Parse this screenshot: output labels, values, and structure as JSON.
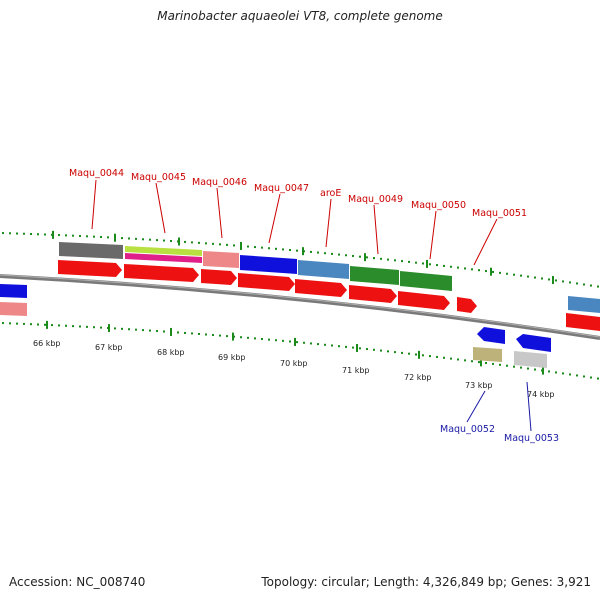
{
  "title": "Marinobacter aquaeolei VT8, complete genome",
  "footer": {
    "accession": "Accession: NC_008740",
    "summary": "Topology: circular; Length: 4,326,849 bp; Genes: 3,921"
  },
  "colors": {
    "backbone": "#7a7a7a",
    "dots": "#1a8a1a",
    "cds": "#ee1111",
    "label_top": "#cc0000",
    "label_bottom": "#1a1aa6"
  },
  "scale": {
    "tick_labels": [
      "66 kbp",
      "67 kbp",
      "68 kbp",
      "69 kbp",
      "70 kbp",
      "71 kbp",
      "72 kbp",
      "73 kbp",
      "74 kbp"
    ]
  },
  "genes_top": [
    {
      "label": "Maqu_0044",
      "color": "#6a6a6a"
    },
    {
      "label": "Maqu_0045",
      "color": "#b8e040",
      "color2": "#e0208a"
    },
    {
      "label": "Maqu_0046",
      "color": "#ee8888"
    },
    {
      "label": "Maqu_0047",
      "color": "#1010dd"
    },
    {
      "label": "aroE",
      "color": "#4a86c0"
    },
    {
      "label": "Maqu_0049",
      "color": "#2a8c2a"
    },
    {
      "label": "Maqu_0050",
      "color": "#2a8c2a"
    },
    {
      "label": "Maqu_0051",
      "color": "#ee1111"
    }
  ],
  "genes_bottom": [
    {
      "label": "Maqu_0052",
      "color": "#1010dd",
      "color2": "#bdb27a"
    },
    {
      "label": "Maqu_0053",
      "color": "#1010dd",
      "color2": "#c8c8c8"
    }
  ]
}
